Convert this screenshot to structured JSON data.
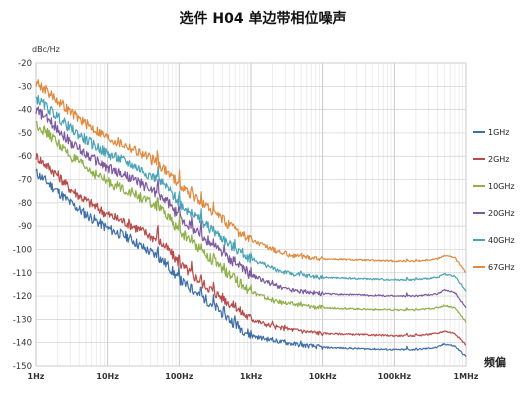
{
  "chart_data": {
    "type": "line",
    "title": "选件 H04 单边带相位噪声",
    "ylabel": "dBc/Hz",
    "xlabel": "频偏",
    "xscale": "log",
    "xlim": [
      1,
      1000000
    ],
    "ylim": [
      -150,
      -20
    ],
    "yticks": [
      -20,
      -30,
      -40,
      -50,
      -60,
      -70,
      -80,
      -90,
      -100,
      -110,
      -120,
      -130,
      -140,
      -150
    ],
    "xticks": [
      {
        "value": 1,
        "label": "1Hz"
      },
      {
        "value": 10,
        "label": "10Hz"
      },
      {
        "value": 100,
        "label": "100Hz"
      },
      {
        "value": 1000,
        "label": "1kHz"
      },
      {
        "value": 10000,
        "label": "10kHz"
      },
      {
        "value": 100000,
        "label": "100kHz"
      },
      {
        "value": 1000000,
        "label": "1MHz"
      }
    ],
    "grid": true,
    "legend_position": "right",
    "series": [
      {
        "name": "1GHz",
        "color": "#3f6fa8",
        "points": [
          [
            1,
            -67
          ],
          [
            2,
            -75
          ],
          [
            3,
            -80
          ],
          [
            5,
            -85
          ],
          [
            10,
            -91
          ],
          [
            20,
            -95
          ],
          [
            30,
            -99
          ],
          [
            50,
            -103
          ],
          [
            70,
            -107
          ],
          [
            100,
            -113
          ],
          [
            200,
            -120
          ],
          [
            300,
            -124
          ],
          [
            500,
            -130
          ],
          [
            1000,
            -137
          ],
          [
            2000,
            -139
          ],
          [
            3000,
            -140
          ],
          [
            5000,
            -141
          ],
          [
            10000,
            -142
          ],
          [
            30000,
            -142.5
          ],
          [
            100000,
            -143
          ],
          [
            200000,
            -143
          ],
          [
            400000,
            -142
          ],
          [
            500000,
            -140.5
          ],
          [
            700000,
            -141.5
          ],
          [
            1000000,
            -146
          ]
        ]
      },
      {
        "name": "2GHz",
        "color": "#b84c4a",
        "points": [
          [
            1,
            -60
          ],
          [
            2,
            -68
          ],
          [
            3,
            -74
          ],
          [
            5,
            -79
          ],
          [
            10,
            -85
          ],
          [
            20,
            -89
          ],
          [
            30,
            -92
          ],
          [
            50,
            -96
          ],
          [
            70,
            -100
          ],
          [
            100,
            -106
          ],
          [
            200,
            -114
          ],
          [
            300,
            -118
          ],
          [
            500,
            -123
          ],
          [
            1000,
            -130
          ],
          [
            2000,
            -133
          ],
          [
            3000,
            -134
          ],
          [
            5000,
            -135
          ],
          [
            10000,
            -136
          ],
          [
            30000,
            -136.5
          ],
          [
            100000,
            -137
          ],
          [
            200000,
            -137
          ],
          [
            400000,
            -136
          ],
          [
            500000,
            -135
          ],
          [
            700000,
            -136
          ],
          [
            1000000,
            -141
          ]
        ]
      },
      {
        "name": "10GHz",
        "color": "#8fb04a",
        "points": [
          [
            1,
            -46
          ],
          [
            2,
            -54
          ],
          [
            3,
            -60
          ],
          [
            5,
            -65
          ],
          [
            10,
            -71
          ],
          [
            20,
            -75
          ],
          [
            30,
            -78
          ],
          [
            50,
            -82
          ],
          [
            70,
            -86
          ],
          [
            100,
            -92
          ],
          [
            200,
            -100
          ],
          [
            300,
            -105
          ],
          [
            500,
            -111
          ],
          [
            1000,
            -118
          ],
          [
            2000,
            -122
          ],
          [
            3000,
            -123
          ],
          [
            5000,
            -124
          ],
          [
            10000,
            -125
          ],
          [
            30000,
            -125.5
          ],
          [
            100000,
            -126
          ],
          [
            200000,
            -126
          ],
          [
            400000,
            -125
          ],
          [
            500000,
            -124
          ],
          [
            700000,
            -125
          ],
          [
            1000000,
            -131
          ]
        ]
      },
      {
        "name": "20GHz",
        "color": "#7d5aa0",
        "points": [
          [
            1,
            -40
          ],
          [
            2,
            -48
          ],
          [
            3,
            -54
          ],
          [
            5,
            -59
          ],
          [
            10,
            -65
          ],
          [
            20,
            -69
          ],
          [
            30,
            -72
          ],
          [
            50,
            -76
          ],
          [
            70,
            -80
          ],
          [
            100,
            -86
          ],
          [
            200,
            -94
          ],
          [
            300,
            -98
          ],
          [
            500,
            -104
          ],
          [
            1000,
            -111
          ],
          [
            2000,
            -115
          ],
          [
            3000,
            -117
          ],
          [
            5000,
            -118
          ],
          [
            10000,
            -119
          ],
          [
            30000,
            -119.5
          ],
          [
            100000,
            -120
          ],
          [
            200000,
            -120
          ],
          [
            400000,
            -119
          ],
          [
            500000,
            -117.5
          ],
          [
            700000,
            -118.5
          ],
          [
            1000000,
            -125
          ]
        ]
      },
      {
        "name": "40GHz",
        "color": "#4ba3b8",
        "points": [
          [
            1,
            -35
          ],
          [
            2,
            -43
          ],
          [
            3,
            -48
          ],
          [
            5,
            -53
          ],
          [
            10,
            -59
          ],
          [
            20,
            -63
          ],
          [
            30,
            -66
          ],
          [
            50,
            -70
          ],
          [
            70,
            -74
          ],
          [
            100,
            -80
          ],
          [
            200,
            -88
          ],
          [
            300,
            -92
          ],
          [
            500,
            -98
          ],
          [
            1000,
            -104
          ],
          [
            2000,
            -108
          ],
          [
            3000,
            -110
          ],
          [
            5000,
            -111
          ],
          [
            10000,
            -112
          ],
          [
            30000,
            -112.5
          ],
          [
            100000,
            -113
          ],
          [
            200000,
            -113
          ],
          [
            400000,
            -112
          ],
          [
            500000,
            -110.5
          ],
          [
            700000,
            -111.5
          ],
          [
            1000000,
            -118
          ]
        ]
      },
      {
        "name": "67GHz",
        "color": "#e08a3f",
        "points": [
          [
            1,
            -28
          ],
          [
            2,
            -36
          ],
          [
            3,
            -41
          ],
          [
            5,
            -46
          ],
          [
            10,
            -52
          ],
          [
            20,
            -56
          ],
          [
            30,
            -59
          ],
          [
            50,
            -63
          ],
          [
            70,
            -67
          ],
          [
            100,
            -72
          ],
          [
            200,
            -80
          ],
          [
            300,
            -84
          ],
          [
            500,
            -90
          ],
          [
            1000,
            -96
          ],
          [
            2000,
            -100
          ],
          [
            3000,
            -102
          ],
          [
            5000,
            -103
          ],
          [
            10000,
            -104
          ],
          [
            30000,
            -104.5
          ],
          [
            100000,
            -105
          ],
          [
            200000,
            -105
          ],
          [
            400000,
            -104
          ],
          [
            500000,
            -102.5
          ],
          [
            700000,
            -103.5
          ],
          [
            1000000,
            -110
          ]
        ]
      }
    ]
  }
}
